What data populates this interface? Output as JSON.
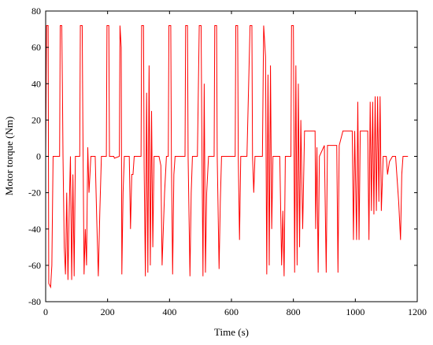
{
  "chart_data": {
    "type": "line",
    "xlabel": "Time (s)",
    "ylabel": "Motor torque (Nm)",
    "xlim": [
      0,
      1200
    ],
    "xticks": [
      0,
      200,
      400,
      600,
      800,
      1000,
      1200
    ],
    "ylim": [
      -80,
      80
    ],
    "yticks": [
      -80,
      -60,
      -40,
      -20,
      0,
      20,
      40,
      60,
      80
    ],
    "series": [
      {
        "color": "#ff0000",
        "x": [
          0,
          3,
          8,
          10,
          16,
          20,
          24,
          45,
          47,
          52,
          54,
          56,
          60,
          64,
          68,
          72,
          76,
          80,
          84,
          88,
          92,
          96,
          110,
          112,
          118,
          120,
          124,
          128,
          132,
          136,
          140,
          146,
          160,
          165,
          170,
          175,
          180,
          196,
          198,
          204,
          206,
          220,
          222,
          238,
          240,
          244,
          246,
          250,
          254,
          270,
          274,
          278,
          282,
          286,
          308,
          310,
          316,
          318,
          322,
          326,
          330,
          334,
          338,
          342,
          346,
          350,
          366,
          372,
          376,
          380,
          384,
          390,
          396,
          398,
          404,
          406,
          410,
          414,
          418,
          440,
          450,
          452,
          458,
          460,
          466,
          470,
          474,
          490,
          496,
          502,
          504,
          508,
          512,
          516,
          520,
          526,
          544,
          546,
          552,
          554,
          560,
          564,
          568,
          590,
          600,
          612,
          614,
          620,
          622,
          626,
          630,
          650,
          660,
          666,
          668,
          672,
          676,
          700,
          704,
          710,
          714,
          718,
          722,
          726,
          730,
          734,
          756,
          762,
          766,
          770,
          774,
          792,
          794,
          800,
          804,
          808,
          812,
          816,
          820,
          824,
          830,
          836,
          870,
          872,
          876,
          880,
          884,
          900,
          906,
          910,
          940,
          944,
          948,
          960,
          990,
          994,
          998,
          1004,
          1008,
          1012,
          1016,
          1040,
          1044,
          1048,
          1052,
          1056,
          1060,
          1064,
          1068,
          1072,
          1076,
          1080,
          1084,
          1090,
          1100,
          1104,
          1110,
          1120,
          1130,
          1140,
          1146,
          1150,
          1154,
          1170
        ],
        "values": [
          0,
          72,
          72,
          -70,
          -72,
          -60,
          0,
          0,
          72,
          72,
          40,
          0,
          -50,
          -65,
          -20,
          -68,
          -30,
          0,
          -68,
          -10,
          -66,
          0,
          0,
          72,
          72,
          20,
          -65,
          -40,
          -60,
          5,
          -20,
          0,
          0,
          -35,
          -66,
          -30,
          0,
          0,
          72,
          72,
          0,
          0,
          -1,
          0,
          72,
          60,
          -65,
          -20,
          0,
          0,
          -40,
          -10,
          -10,
          0,
          0,
          72,
          72,
          -5,
          -66,
          35,
          -64,
          50,
          -60,
          25,
          -50,
          0,
          0,
          -5,
          -60,
          -40,
          -20,
          0,
          0,
          72,
          72,
          0,
          -65,
          -10,
          0,
          0,
          0,
          72,
          72,
          0,
          -66,
          -20,
          0,
          0,
          72,
          72,
          20,
          -66,
          40,
          -64,
          -20,
          0,
          0,
          72,
          72,
          0,
          -62,
          -25,
          0,
          0,
          0,
          0,
          72,
          72,
          0,
          -46,
          0,
          0,
          72,
          72,
          0,
          -20,
          0,
          0,
          72,
          55,
          -65,
          45,
          -60,
          50,
          -40,
          0,
          0,
          -60,
          -30,
          -66,
          0,
          0,
          72,
          72,
          -64,
          50,
          -60,
          40,
          -50,
          20,
          -40,
          14,
          14,
          -40,
          5,
          -64,
          0,
          6,
          -64,
          6,
          6,
          -64,
          6,
          14,
          14,
          -46,
          14,
          -46,
          30,
          -46,
          14,
          14,
          -46,
          30,
          -30,
          30,
          -32,
          33,
          -30,
          33,
          -25,
          33,
          -30,
          0,
          0,
          -10,
          -3,
          0,
          0,
          -25,
          -46,
          -10,
          0,
          0
        ]
      }
    ]
  }
}
